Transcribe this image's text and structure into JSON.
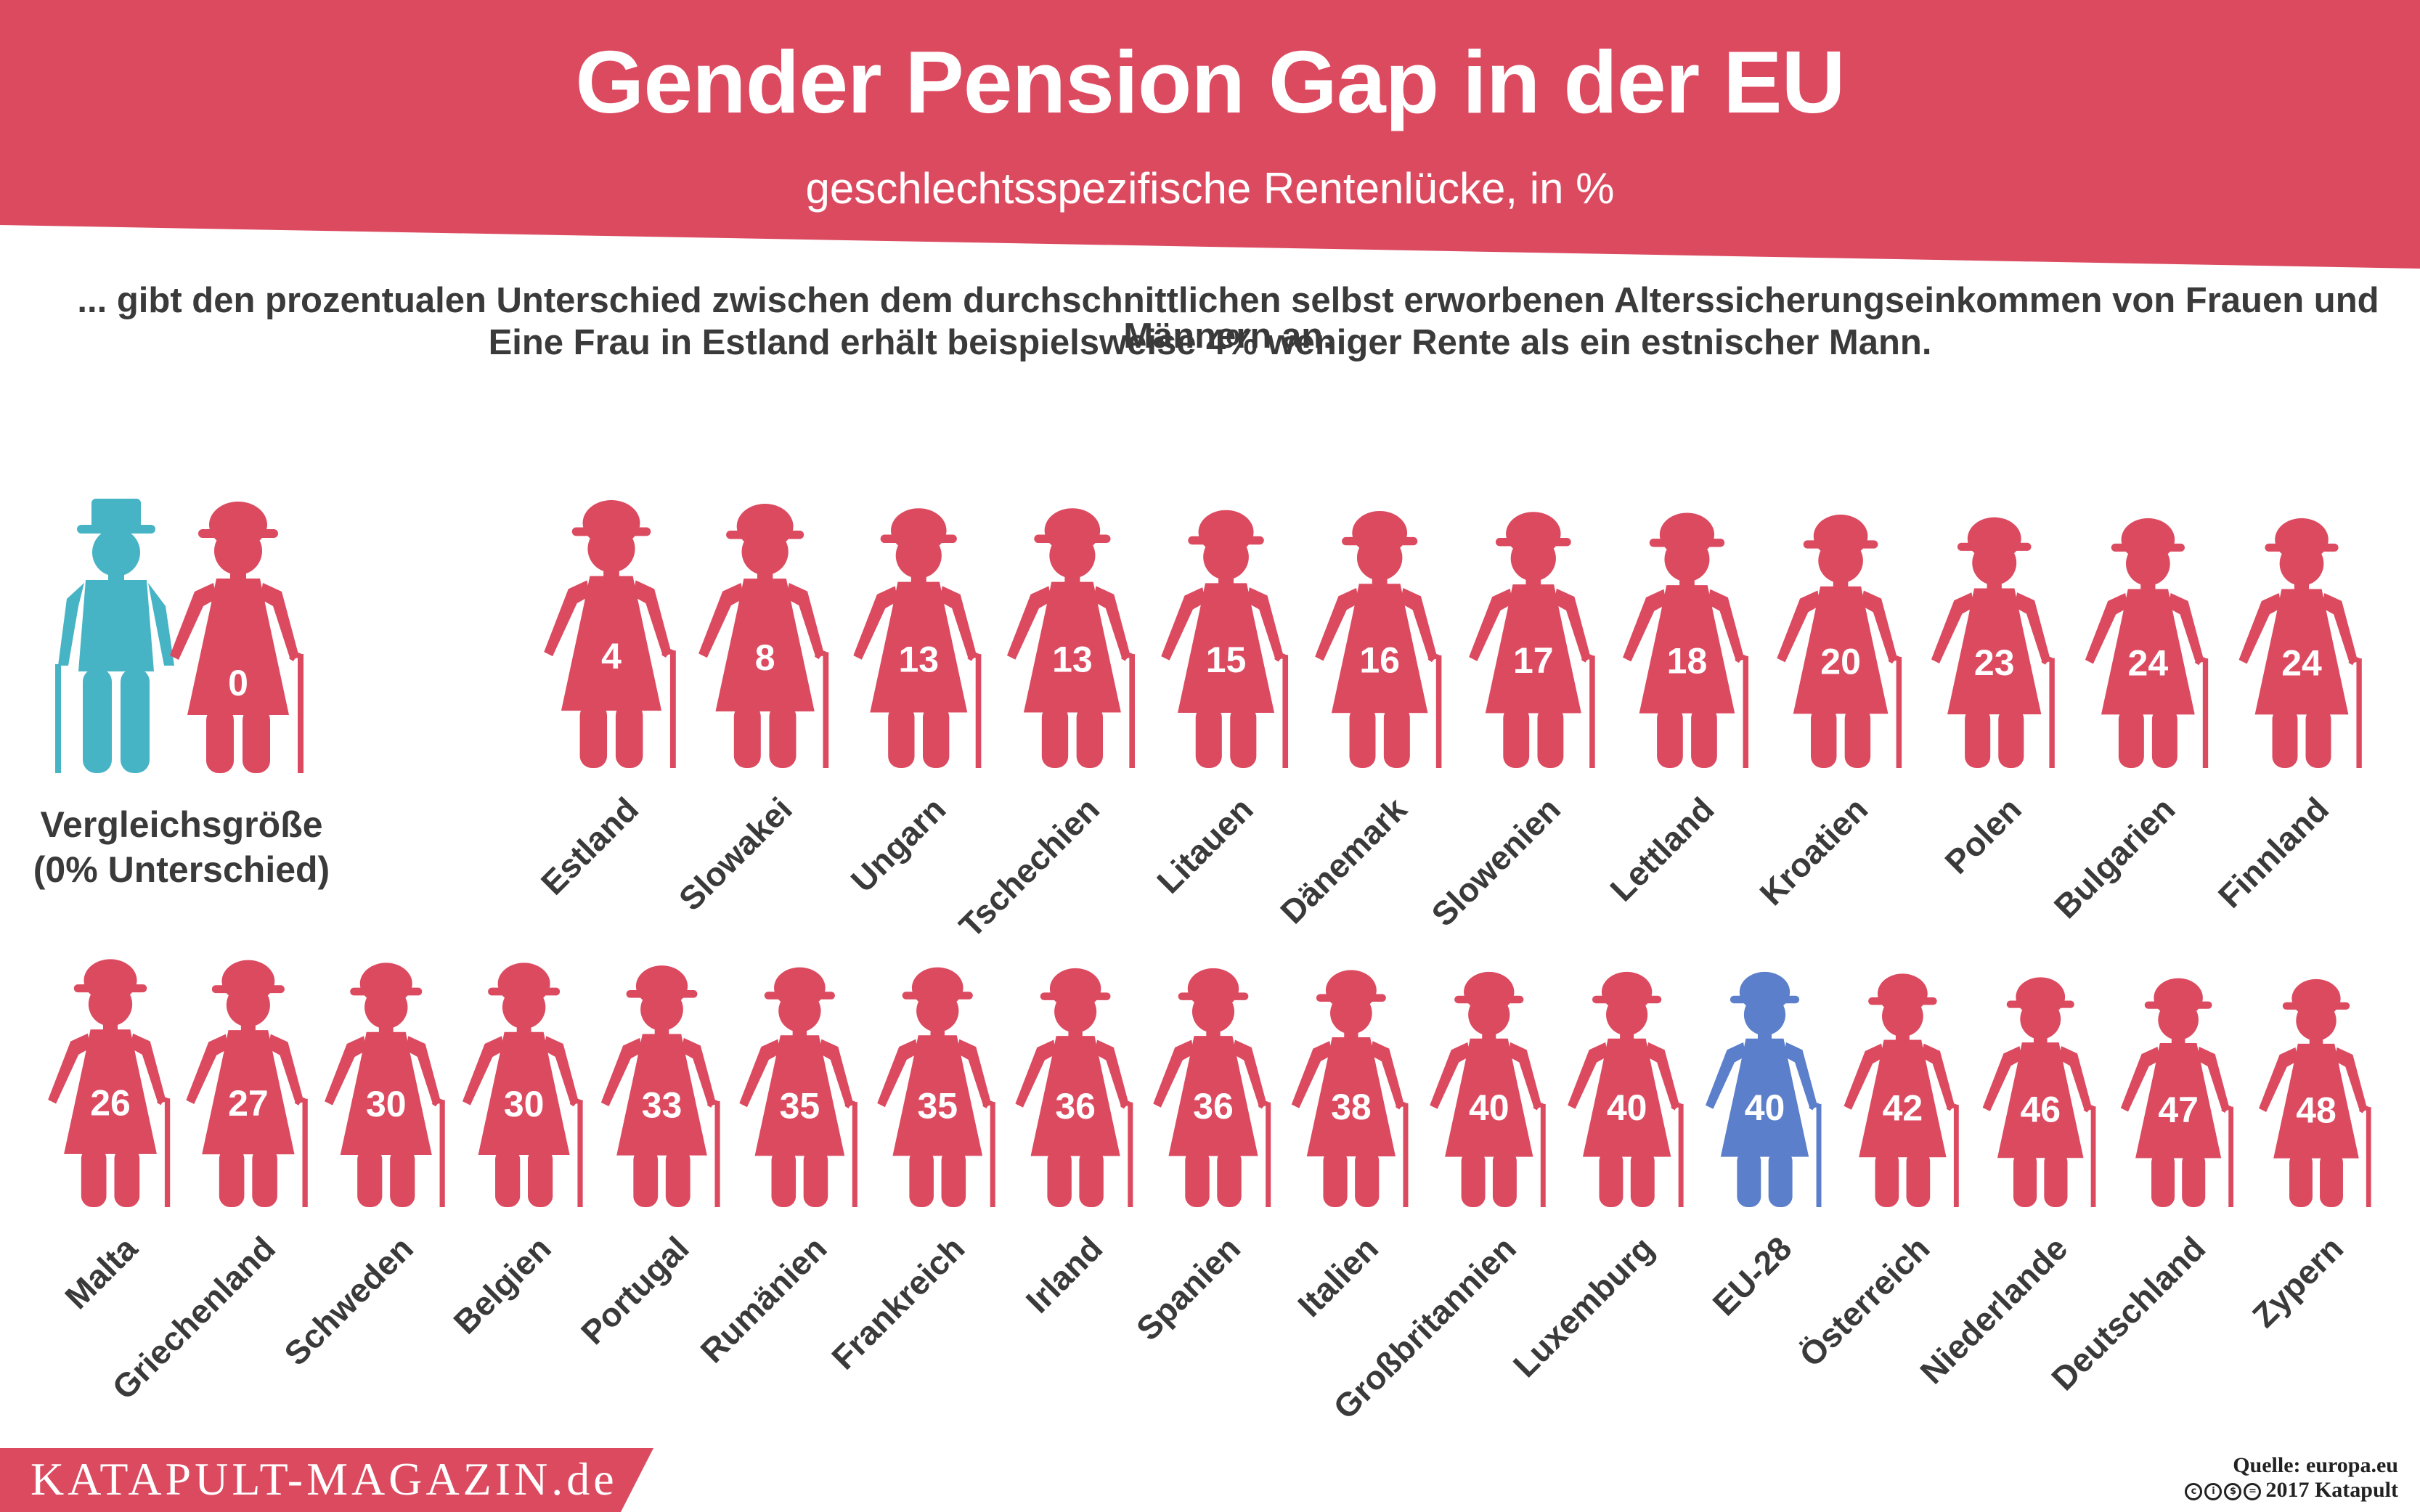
{
  "header": {
    "title": "Gender Pension Gap in der EU",
    "subtitle": "geschlechtsspezifische Rentenlücke, in %"
  },
  "description": {
    "line1": "... gibt den prozentualen Unterschied zwischen dem durchschnittlichen selbst erworbenen Alterssicherungseinkommen von Frauen und Männern an.",
    "line2": "Eine Frau in Estland erhält beispielsweise 4% weniger Rente als ein estnischer Mann."
  },
  "colors": {
    "women": "#dc4a60",
    "man": "#47b4c5",
    "eu_average": "#5b7fcb",
    "header": "#dc4a60"
  },
  "reference": {
    "value": 0,
    "label_line1": "Vergleichsgröße",
    "label_line2": "(0% Unterschied)"
  },
  "chart_data": {
    "type": "bar",
    "title": "Gender Pension Gap in der EU",
    "subtitle": "geschlechtsspezifische Rentenlücke, in %",
    "encoding": "pictogram size grows with value",
    "categories": [
      "Estland",
      "Slowakei",
      "Ungarn",
      "Tschechien",
      "Litauen",
      "Dänemark",
      "Slowenien",
      "Lettland",
      "Kroatien",
      "Polen",
      "Bulgarien",
      "Finnland",
      "Malta",
      "Griechenland",
      "Schweden",
      "Belgien",
      "Portugal",
      "Rumänien",
      "Frankreich",
      "Irland",
      "Spanien",
      "Italien",
      "Großbritannien",
      "Luxemburg",
      "EU-28",
      "Österreich",
      "Niederlande",
      "Deutschland",
      "Zypern"
    ],
    "values": [
      4,
      8,
      13,
      13,
      15,
      16,
      17,
      18,
      20,
      23,
      24,
      24,
      26,
      27,
      30,
      30,
      33,
      35,
      35,
      36,
      36,
      38,
      40,
      40,
      40,
      42,
      46,
      47,
      48
    ],
    "highlight": "EU-28"
  },
  "branding": {
    "site": "KATAPULT-MAGAZIN.de",
    "source": "Quelle: europa.eu",
    "copyright": "2017 Katapult"
  }
}
